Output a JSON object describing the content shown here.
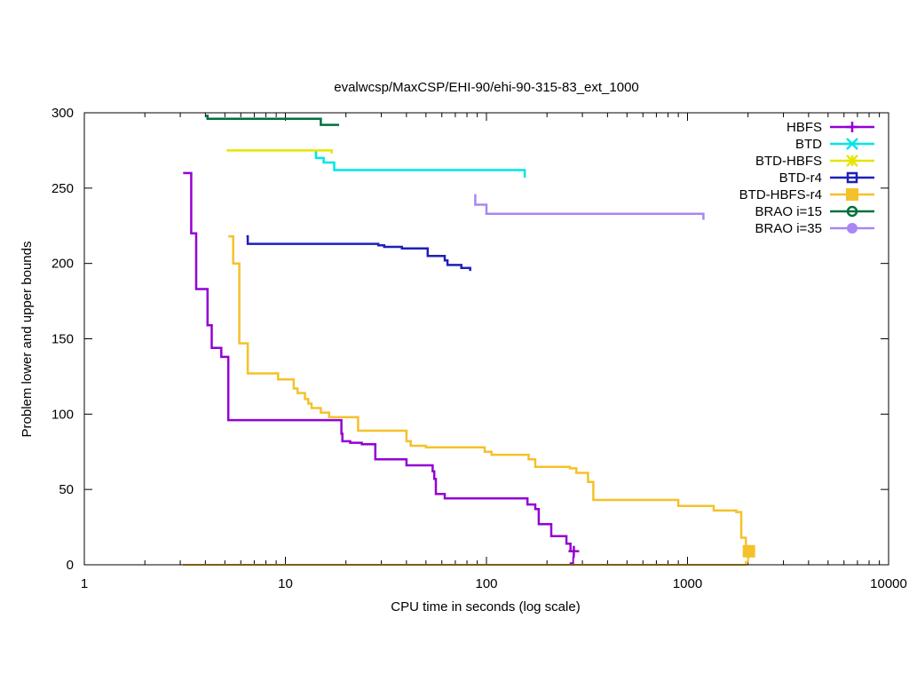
{
  "chart_data": {
    "type": "line",
    "title": "evalwcsp/MaxCSP/EHI-90/ehi-90-315-83_ext_1000",
    "xlabel": "CPU time in seconds (log scale)",
    "ylabel": "Problem lower and upper bounds",
    "xscale": "log",
    "xlim": [
      1,
      10000
    ],
    "ylim": [
      0,
      300
    ],
    "xticks": [
      1,
      10,
      100,
      1000,
      10000
    ],
    "xtick_labels": [
      "1",
      "10",
      "100",
      "1000",
      "10000"
    ],
    "yticks": [
      0,
      50,
      100,
      150,
      200,
      250,
      300
    ],
    "ytick_labels": [
      "0",
      "50",
      "100",
      "150",
      "200",
      "250",
      "300"
    ],
    "legend_position": "top-right",
    "series": [
      {
        "name": "HBFS",
        "color": "#9400d3",
        "marker": "plus",
        "upper": [
          [
            3.1,
            260
          ],
          [
            3.4,
            260
          ],
          [
            3.4,
            220
          ],
          [
            3.6,
            220
          ],
          [
            3.6,
            183
          ],
          [
            4.1,
            183
          ],
          [
            4.1,
            159
          ],
          [
            4.3,
            159
          ],
          [
            4.3,
            144
          ],
          [
            4.8,
            144
          ],
          [
            4.8,
            138
          ],
          [
            5.2,
            138
          ],
          [
            5.2,
            96
          ],
          [
            19,
            96
          ],
          [
            19,
            87
          ],
          [
            19.2,
            87
          ],
          [
            19.2,
            82
          ],
          [
            21,
            82
          ],
          [
            21,
            81
          ],
          [
            24,
            81
          ],
          [
            24,
            80
          ],
          [
            28,
            80
          ],
          [
            28,
            70
          ],
          [
            40,
            70
          ],
          [
            40,
            66
          ],
          [
            54,
            66
          ],
          [
            54,
            62
          ],
          [
            55,
            62
          ],
          [
            55,
            57
          ],
          [
            56,
            57
          ],
          [
            56,
            47
          ],
          [
            62,
            47
          ],
          [
            62,
            44
          ],
          [
            160,
            44
          ],
          [
            160,
            40
          ],
          [
            175,
            40
          ],
          [
            175,
            37
          ],
          [
            182,
            37
          ],
          [
            182,
            27
          ],
          [
            210,
            27
          ],
          [
            210,
            19
          ],
          [
            250,
            19
          ],
          [
            250,
            14
          ],
          [
            262,
            14
          ],
          [
            262,
            9
          ]
        ],
        "lower": [
          [
            3.1,
            0
          ],
          [
            262,
            0
          ],
          [
            262,
            1
          ],
          [
            270,
            1
          ],
          [
            270,
            5
          ],
          [
            272,
            5
          ],
          [
            272,
            9
          ]
        ],
        "final": [
          272,
          9
        ]
      },
      {
        "name": "BTD",
        "color": "#00e5e5",
        "marker": "x",
        "upper": [
          [
            14,
            274
          ],
          [
            14.2,
            274
          ],
          [
            14.2,
            270
          ],
          [
            15.5,
            270
          ],
          [
            15.5,
            267
          ],
          [
            17.5,
            267
          ],
          [
            17.5,
            262
          ],
          [
            155,
            262
          ],
          [
            155,
            257
          ]
        ],
        "lower": []
      },
      {
        "name": "BTD-HBFS",
        "color": "#e5e500",
        "marker": "star",
        "upper": [
          [
            5.1,
            275
          ],
          [
            17,
            275
          ],
          [
            17,
            273
          ]
        ],
        "lower": []
      },
      {
        "name": "BTD-r4",
        "color": "#1f1fb8",
        "marker": "square",
        "upper": [
          [
            6.4,
            218
          ],
          [
            6.5,
            218
          ],
          [
            6.5,
            213
          ],
          [
            29,
            213
          ],
          [
            29,
            212
          ],
          [
            31,
            212
          ],
          [
            31,
            211
          ],
          [
            38,
            211
          ],
          [
            38,
            210
          ],
          [
            51,
            210
          ],
          [
            51,
            205
          ],
          [
            62,
            205
          ],
          [
            62,
            202
          ],
          [
            64,
            202
          ],
          [
            64,
            199
          ],
          [
            75,
            199
          ],
          [
            75,
            197
          ],
          [
            83,
            197
          ],
          [
            83,
            195
          ]
        ],
        "lower": []
      },
      {
        "name": "BTD-HBFS-r4",
        "color": "#f5c12a",
        "marker": "filled-square",
        "upper": [
          [
            5.2,
            218
          ],
          [
            5.5,
            218
          ],
          [
            5.5,
            200
          ],
          [
            5.9,
            200
          ],
          [
            5.9,
            147
          ],
          [
            6.5,
            147
          ],
          [
            6.5,
            127
          ],
          [
            9.2,
            127
          ],
          [
            9.2,
            123
          ],
          [
            11,
            123
          ],
          [
            11,
            117
          ],
          [
            11.5,
            117
          ],
          [
            11.5,
            114
          ],
          [
            12.5,
            114
          ],
          [
            12.5,
            110
          ],
          [
            13,
            110
          ],
          [
            13,
            107
          ],
          [
            13.5,
            107
          ],
          [
            13.5,
            104
          ],
          [
            15,
            104
          ],
          [
            15,
            101
          ],
          [
            16.5,
            101
          ],
          [
            16.5,
            98
          ],
          [
            23,
            98
          ],
          [
            23,
            89
          ],
          [
            40,
            89
          ],
          [
            40,
            82
          ],
          [
            42,
            82
          ],
          [
            42,
            79
          ],
          [
            50,
            79
          ],
          [
            50,
            78
          ],
          [
            98,
            78
          ],
          [
            98,
            75
          ],
          [
            106,
            75
          ],
          [
            106,
            73
          ],
          [
            162,
            73
          ],
          [
            162,
            70
          ],
          [
            175,
            70
          ],
          [
            175,
            65
          ],
          [
            260,
            65
          ],
          [
            260,
            64
          ],
          [
            280,
            64
          ],
          [
            280,
            61
          ],
          [
            320,
            61
          ],
          [
            320,
            55
          ],
          [
            340,
            55
          ],
          [
            340,
            43
          ],
          [
            900,
            43
          ],
          [
            900,
            39
          ],
          [
            1350,
            39
          ],
          [
            1350,
            36
          ],
          [
            1750,
            36
          ],
          [
            1750,
            35
          ],
          [
            1850,
            35
          ],
          [
            1850,
            18
          ],
          [
            1950,
            18
          ],
          [
            1950,
            9
          ]
        ],
        "lower": [
          [
            3.1,
            0
          ],
          [
            1950,
            0
          ],
          [
            1950,
            2
          ],
          [
            2000,
            2
          ],
          [
            2000,
            5
          ],
          [
            2020,
            5
          ],
          [
            2020,
            9
          ]
        ],
        "final": [
          2020,
          9
        ]
      },
      {
        "name": "BRAO i=15",
        "color": "#00703c",
        "marker": "circle",
        "upper": [
          [
            4.0,
            298
          ],
          [
            4.1,
            298
          ],
          [
            4.1,
            296
          ],
          [
            15,
            296
          ],
          [
            15,
            292
          ],
          [
            18.5,
            292
          ]
        ],
        "lower": []
      },
      {
        "name": "BRAO i=35",
        "color": "#a887f2",
        "marker": "filled-circle",
        "upper": [
          [
            88,
            246
          ],
          [
            88,
            239
          ],
          [
            100,
            239
          ],
          [
            100,
            233
          ],
          [
            1200,
            233
          ],
          [
            1200,
            229
          ]
        ],
        "lower": []
      }
    ]
  }
}
